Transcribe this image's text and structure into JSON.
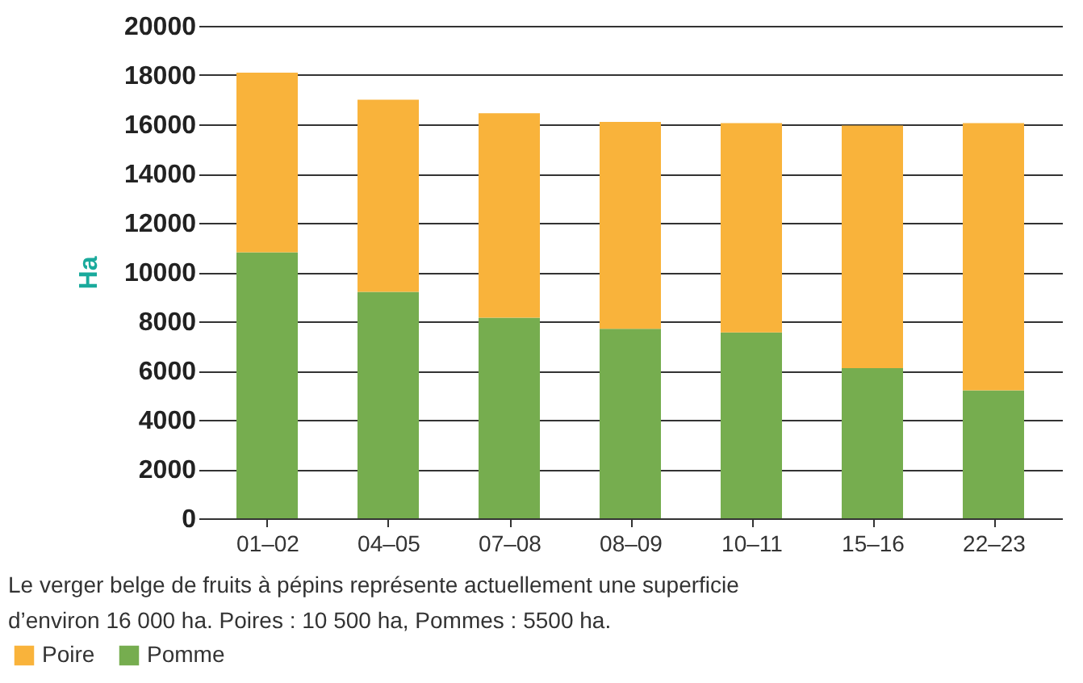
{
  "chart_data": {
    "type": "bar",
    "stacked": true,
    "ylabel": "Ha",
    "categories": [
      "01–02",
      "04–05",
      "07–08",
      "08–09",
      "10–11",
      "15–16",
      "22–23"
    ],
    "series": [
      {
        "name": "Pomme",
        "color": "#76ad4f",
        "values": [
          10800,
          9200,
          8150,
          7700,
          7550,
          6100,
          5200
        ]
      },
      {
        "name": "Poire",
        "color": "#f9b33b",
        "values": [
          7300,
          7800,
          8300,
          8400,
          8500,
          9850,
          10850
        ]
      }
    ],
    "ylim": [
      0,
      20000
    ],
    "yticks": [
      0,
      2000,
      4000,
      6000,
      8000,
      10000,
      12000,
      14000,
      16000,
      18000,
      20000
    ],
    "grid": "y",
    "legend": "bottom",
    "annotations": [
      "Le verger belge de fruits à pépins représente actuellement une superficie",
      "d’environ 16 000 ha. Poires : 10 500 ha, Pommes : 5500 ha."
    ]
  }
}
